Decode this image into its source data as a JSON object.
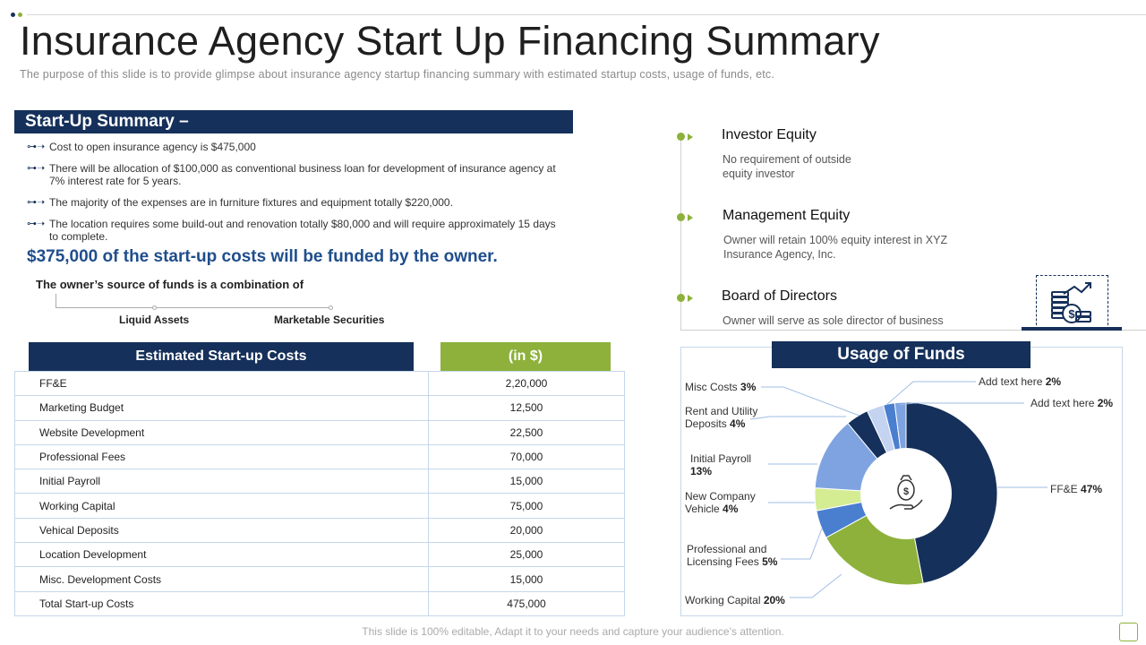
{
  "title": "Insurance Agency Start Up Financing Summary",
  "subtitle": "The purpose of this slide is to provide glimpse about insurance agency startup financing summary with estimated startup costs, usage of funds, etc.",
  "summary": {
    "heading": "Start-Up Summary –",
    "bullets": [
      "Cost to open insurance agency is $475,000",
      "There will be allocation of $100,000 as conventional business loan for development of insurance agency at 7% interest rate for 5 years.",
      "The majority of the expenses are in furniture fixtures and equipment totally $220,000.",
      "The location requires some build-out and renovation totally $80,000 and will require approximately 15 days to complete."
    ],
    "funded": "$375,000 of the start-up costs will be funded by the owner.",
    "combination": "The owner’s source of funds is a combination of",
    "sources": [
      "Liquid Assets",
      "Marketable Securities"
    ]
  },
  "costs": {
    "header_label": "Estimated Start-up Costs",
    "header_unit": "(in $)",
    "rows": [
      {
        "label": "FF&E",
        "value": "2,20,000"
      },
      {
        "label": "Marketing Budget",
        "value": "12,500"
      },
      {
        "label": "Website Development",
        "value": "22,500"
      },
      {
        "label": "Professional Fees",
        "value": "70,000"
      },
      {
        "label": "Initial Payroll",
        "value": "15,000"
      },
      {
        "label": "Working Capital",
        "value": "75,000"
      },
      {
        "label": "Vehical Deposits",
        "value": "20,000"
      },
      {
        "label": "Location Development",
        "value": "25,000"
      },
      {
        "label": "Misc. Development Costs",
        "value": "15,000"
      },
      {
        "label": "Total Start-up Costs",
        "value": "475,000"
      }
    ]
  },
  "equity": [
    {
      "title": "Investor Equity",
      "desc": [
        "No requirement of outside",
        "equity investor"
      ]
    },
    {
      "title": "Management Equity",
      "desc": [
        "Owner will retain 100% equity interest in XYZ",
        "Insurance Agency, Inc."
      ]
    },
    {
      "title": "Board of Directors",
      "desc": [
        "Owner will serve as sole director of business"
      ]
    }
  ],
  "usage": {
    "heading": "Usage of Funds",
    "labels": {
      "misc": {
        "name": "Misc Costs",
        "pct": "3%"
      },
      "rent": {
        "name1": "Rent and Utility",
        "name2": "Deposits",
        "pct": "4%"
      },
      "payroll": {
        "name1": "Initial Payroll",
        "pct": "13%"
      },
      "vehicle": {
        "name1": "New Company",
        "name2": "Vehicle",
        "pct": "4%"
      },
      "prof": {
        "name1": "Professional and",
        "name2": "Licensing Fees",
        "pct": "5%"
      },
      "wc": {
        "name": "Working Capital",
        "pct": "20%"
      },
      "ffe": {
        "name": "FF&E",
        "pct": "47%"
      },
      "add1": {
        "name": "Add text here",
        "pct": "2%"
      },
      "add2": {
        "name": "Add text here",
        "pct": "2%"
      }
    }
  },
  "chart_data": {
    "type": "pie",
    "title": "Usage of Funds",
    "style": "donut",
    "categories": [
      "FF&E",
      "Working Capital",
      "Professional and Licensing Fees",
      "New Company Vehicle",
      "Initial Payroll",
      "Rent and Utility Deposits",
      "Misc Costs",
      "Add text here",
      "Add text here"
    ],
    "values": [
      47,
      20,
      5,
      4,
      13,
      4,
      3,
      2,
      2
    ],
    "colors": [
      "#15305a",
      "#8db13a",
      "#4a7fd0",
      "#d4ec92",
      "#7ea3e0",
      "#15305a",
      "#c3d3f0",
      "#4a7fd0",
      "#7ea3e0"
    ]
  },
  "footer": "This slide is 100% editable, Adapt it to your needs and capture your audience’s attention.",
  "colors": {
    "navy": "#15305a",
    "green": "#8db13a",
    "title_blue": "#1f4e8c"
  }
}
